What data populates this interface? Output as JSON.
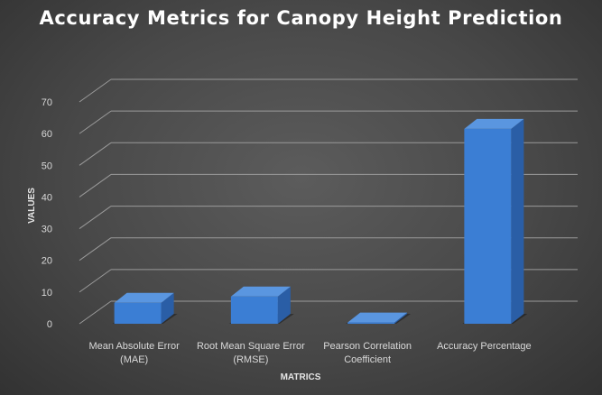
{
  "chart_data": {
    "type": "bar",
    "title": "Accuracy Metrics for Canopy Height Prediction",
    "xlabel": "MATRICS",
    "ylabel": "VALUES",
    "ylim": [
      0,
      70
    ],
    "yticks": [
      "0",
      "10",
      "20",
      "30",
      "40",
      "50",
      "60",
      "70"
    ],
    "categories": [
      [
        "Mean Absolute Error",
        "(MAE)"
      ],
      [
        "Root Mean Square Error",
        "(RMSE)"
      ],
      [
        "Pearson Correlation",
        "Coefficient"
      ],
      [
        "Accuracy Percentage"
      ]
    ],
    "values": [
      6.6,
      8.6,
      0.4,
      61.5
    ],
    "grid": true,
    "legend": "none",
    "colors": {
      "bar_front": "#3b7ed4",
      "bar_side": "#2a5ea6",
      "bar_top": "#5a96e0",
      "gridline": "#9a9a9a"
    }
  }
}
